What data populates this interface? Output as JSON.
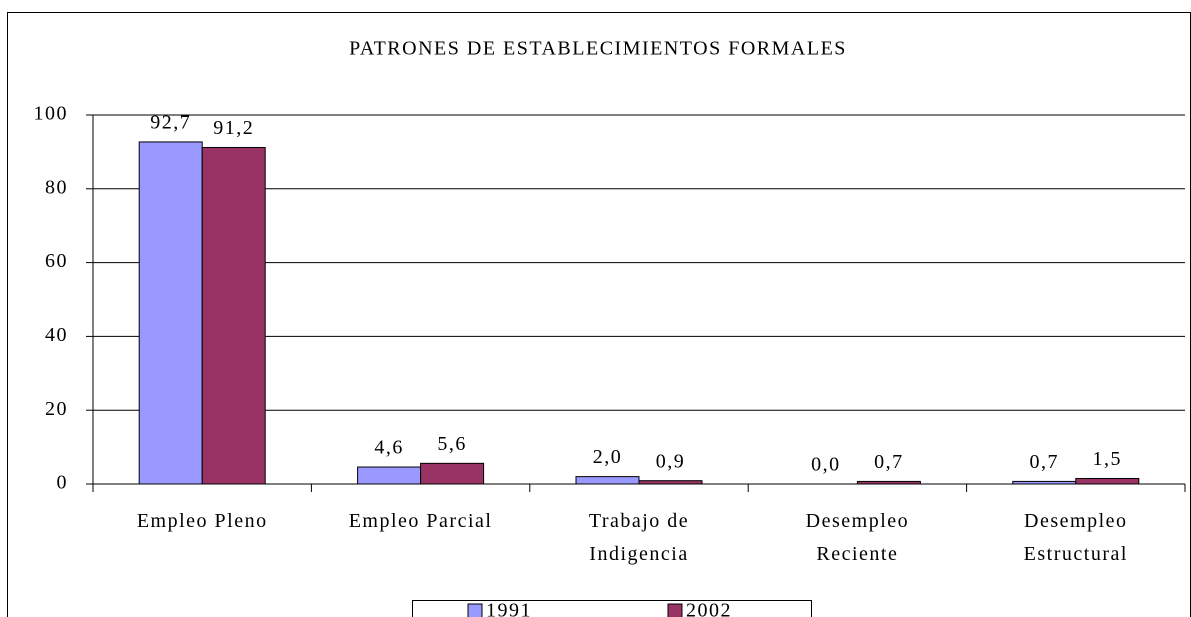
{
  "chart_data": {
    "type": "bar",
    "title": "PATRONES DE ESTABLECIMIENTOS FORMALES",
    "categories": [
      "Empleo Pleno",
      "Empleo Parcial",
      "Trabajo de\nIndigencia",
      "Desempleo\nReciente",
      "Desempleo\nEstructural"
    ],
    "series": [
      {
        "name": "1991",
        "color": "#9999ff",
        "values": [
          92.7,
          4.6,
          2.0,
          0.0,
          0.7
        ],
        "value_labels": [
          "92,7",
          "4,6",
          "2,0",
          "0,0",
          "0,7"
        ]
      },
      {
        "name": "2002",
        "color": "#993366",
        "values": [
          91.2,
          5.6,
          0.9,
          0.7,
          1.5
        ],
        "value_labels": [
          "91,2",
          "5,6",
          "0,9",
          "0,7",
          "1,5"
        ]
      }
    ],
    "ylim": [
      0,
      100
    ],
    "yticks": [
      0,
      20,
      40,
      60,
      80,
      100
    ],
    "grid": true,
    "legend": "bottom"
  }
}
